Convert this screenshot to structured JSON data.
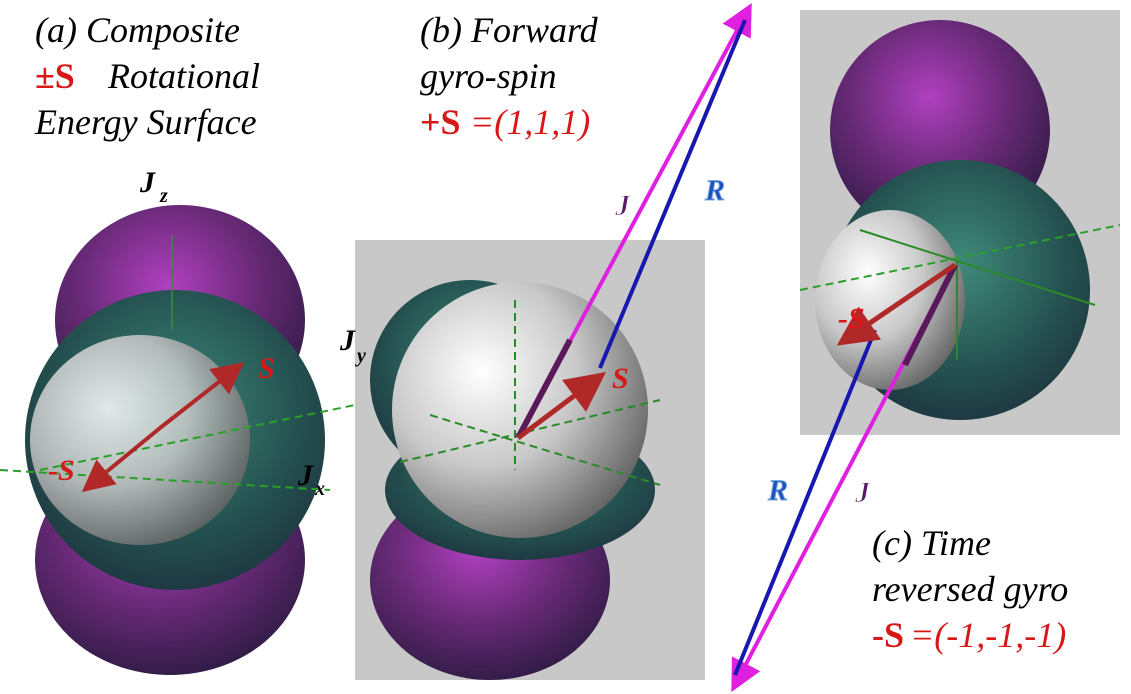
{
  "panel_a": {
    "title_line1": "(a) Composite",
    "title_symbol": "±S",
    "title_line2": "Rotational",
    "title_line3": "Energy Surface",
    "axis_labels": [
      {
        "main": "J",
        "sub": "z"
      },
      {
        "main": "J",
        "sub": "y"
      },
      {
        "main": "J",
        "sub": "x"
      }
    ],
    "vector_labels": [
      "S",
      "-S"
    ]
  },
  "panel_b": {
    "title_line1": "(b) Forward",
    "title_line2": "gyro-spin",
    "title_symbol": "+S",
    "title_value": "=(1,1,1)",
    "vector_labels": [
      "J",
      "R",
      "S"
    ]
  },
  "panel_c": {
    "title_line1": "(c) Time",
    "title_line2": "reversed gyro",
    "title_symbol": "-S",
    "title_value": "=(-1,-1,-1)",
    "vector_labels": [
      "R",
      "J",
      "-S"
    ]
  }
}
